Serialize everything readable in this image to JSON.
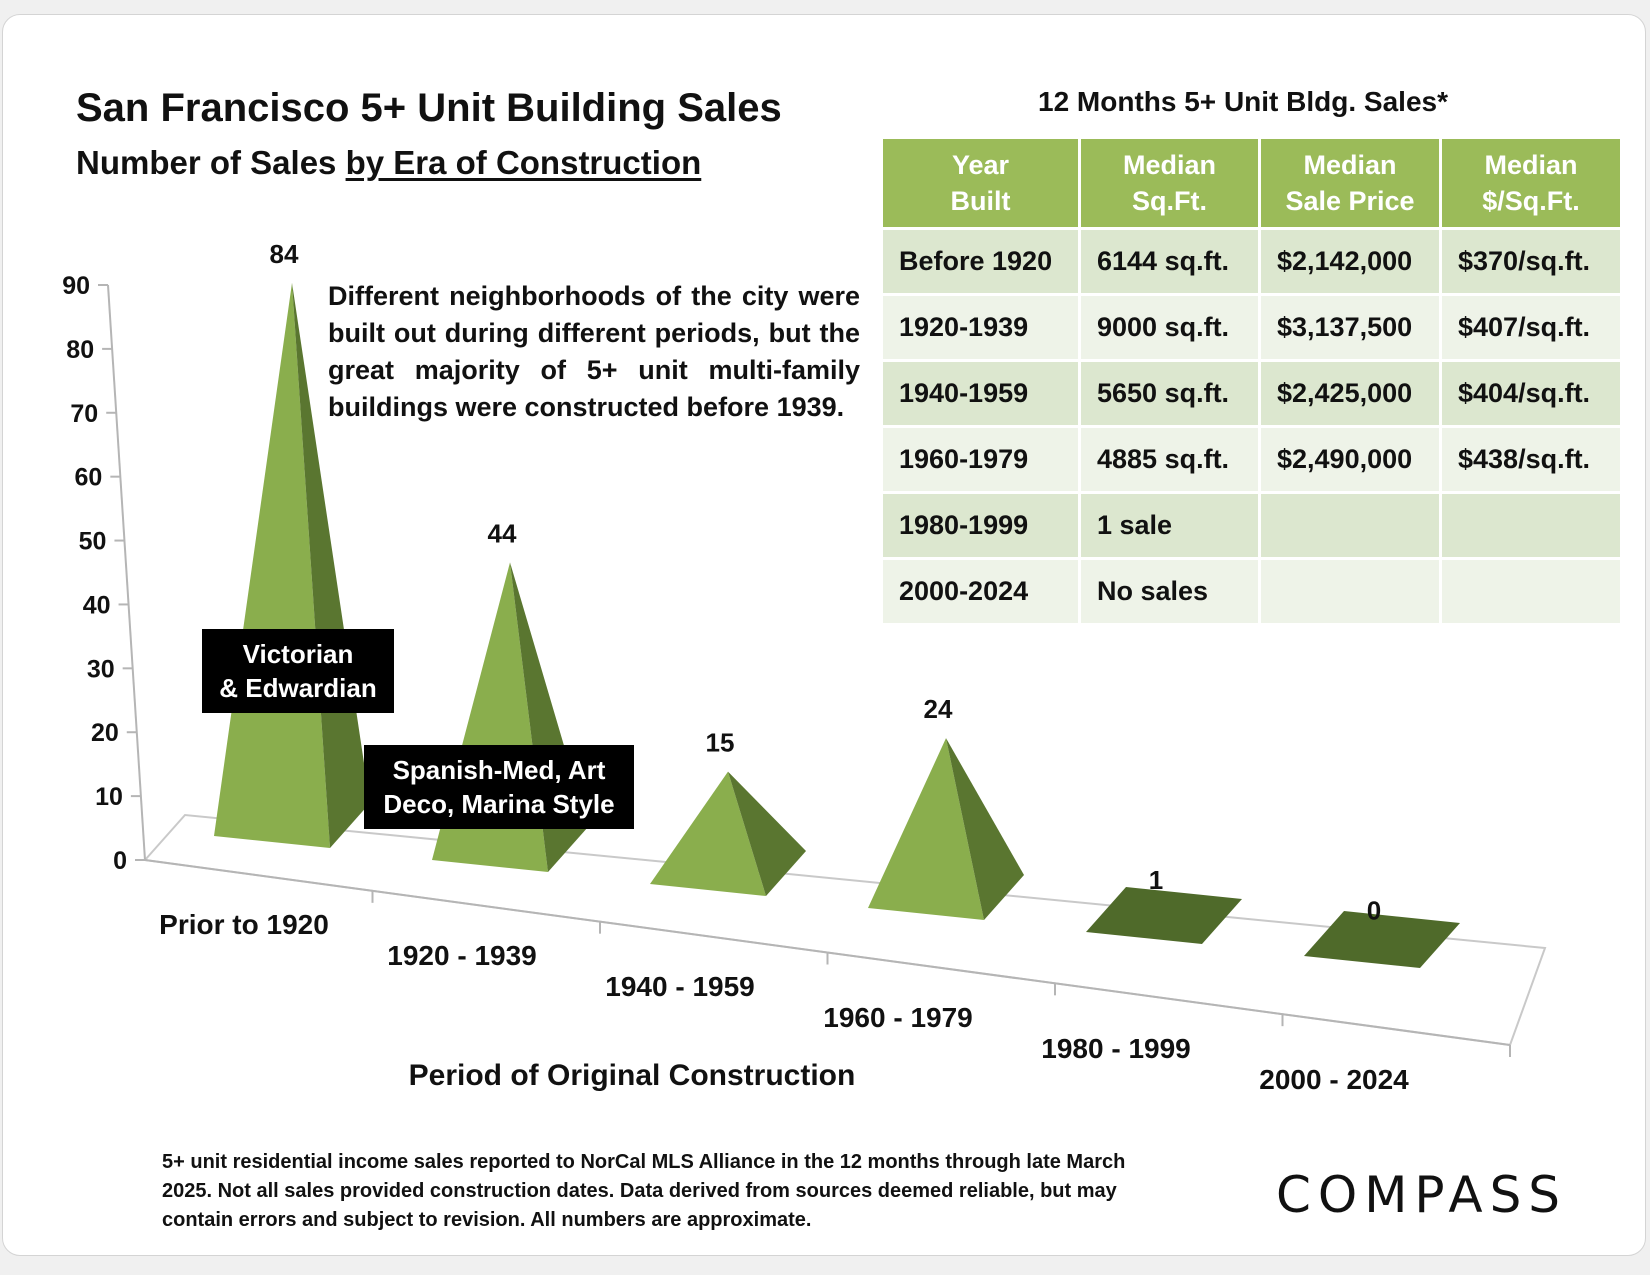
{
  "header": {
    "title": "San Francisco 5+ Unit Building Sales",
    "subtitle_prefix": "Number of Sales ",
    "subtitle_emphasis": "by Era of Construction"
  },
  "intro_text": "Different neighborhoods of the city were built out during different periods, but the great majority of 5+ unit multi-family buildings were constructed before 1939.",
  "table": {
    "title": "12 Months 5+ Unit Bldg. Sales*",
    "headers": [
      [
        "Year",
        "Built"
      ],
      [
        "Median",
        "Sq.Ft."
      ],
      [
        "Median",
        "Sale Price"
      ],
      [
        "Median",
        "$/Sq.Ft."
      ]
    ],
    "rows": [
      [
        "Before 1920",
        "6144 sq.ft.",
        "$2,142,000",
        "$370/sq.ft."
      ],
      [
        "1920-1939",
        "9000 sq.ft.",
        "$3,137,500",
        "$407/sq.ft."
      ],
      [
        "1940-1959",
        "5650 sq.ft.",
        "$2,425,000",
        "$404/sq.ft."
      ],
      [
        "1960-1979",
        "4885 sq.ft.",
        "$2,490,000",
        "$438/sq.ft."
      ],
      [
        "1980-1999",
        "1 sale",
        "",
        ""
      ],
      [
        "2000-2024",
        "No sales",
        "",
        ""
      ]
    ],
    "header_color": "#9bbb59",
    "row_colors": [
      "#dce7cf",
      "#eef3e8"
    ]
  },
  "callouts": {
    "victorian": [
      "Victorian",
      "& Edwardian"
    ],
    "spanish": [
      "Spanish-Med, Art",
      "Deco, Marina Style"
    ]
  },
  "chart_data": {
    "type": "bar",
    "shape": "3d-pyramid",
    "categories": [
      "Prior to 1920",
      "1920 - 1939",
      "1940 - 1959",
      "1960 - 1979",
      "1980 - 1999",
      "2000 - 2024"
    ],
    "values": [
      84,
      44,
      15,
      24,
      1,
      0
    ],
    "data_labels": [
      "84",
      "44",
      "15",
      "24",
      "1",
      "0"
    ],
    "xlabel": "Period of Original Construction",
    "ylabel": "",
    "ylim": [
      0,
      90
    ],
    "yticks": [
      0,
      10,
      20,
      30,
      40,
      50,
      60,
      70,
      80,
      90
    ],
    "grid": false,
    "legend": "none",
    "colors": {
      "light_face": "#8aae4d",
      "dark_face": "#5a7630",
      "floor": "#4f6a2a"
    }
  },
  "footnote": "5+ unit residential income sales reported to NorCal MLS Alliance in the 12 months through late March 2025. Not all sales provided construction dates. Data derived from sources deemed reliable, but may contain errors and subject to revision. All numbers are approximate.",
  "logo": {
    "text": "COMPASS"
  }
}
